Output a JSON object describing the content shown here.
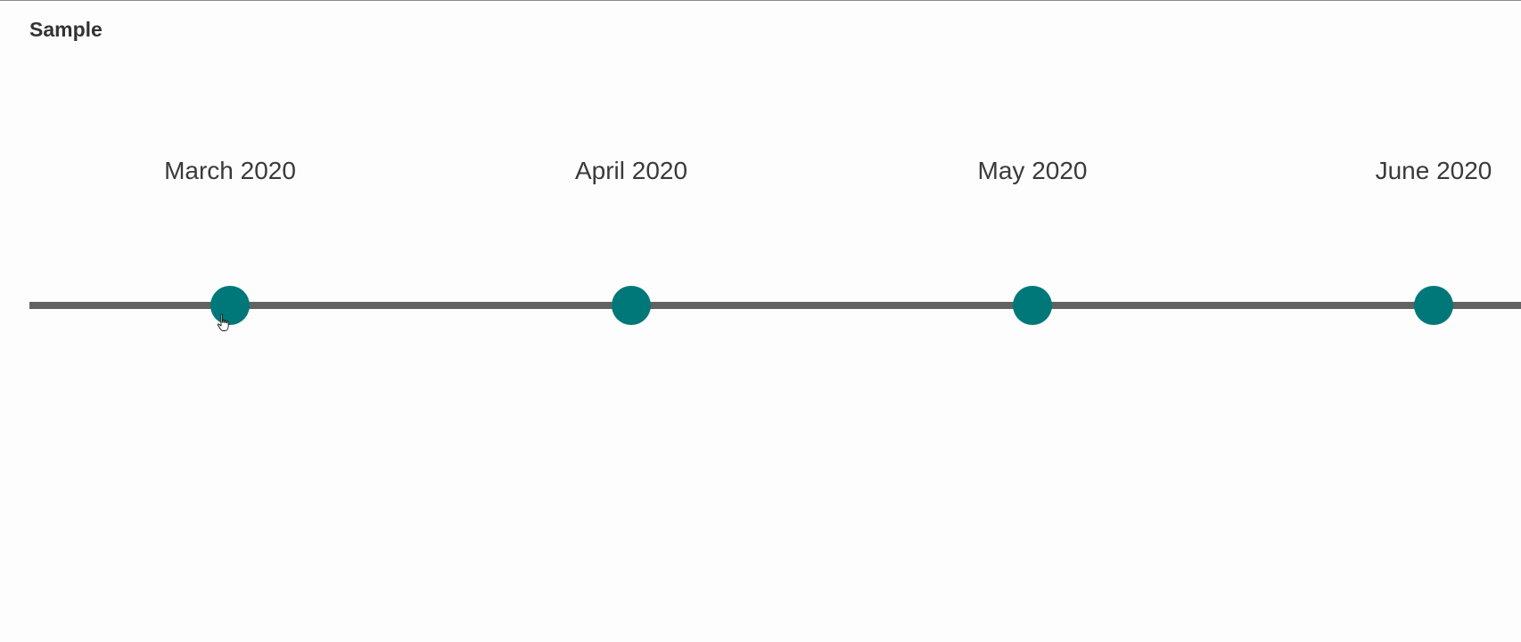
{
  "page": {
    "title": "Sample"
  },
  "colors": {
    "accent": "#00787a",
    "line": "#626262",
    "background": "#fdfdfd",
    "text": "#3a3a3a"
  },
  "timeline": {
    "milestones": [
      {
        "label": "March 2020"
      },
      {
        "label": "April 2020"
      },
      {
        "label": "May 2020"
      },
      {
        "label": "June 2020"
      }
    ]
  },
  "cursor": {
    "icon": "hand-pointer-icon"
  }
}
